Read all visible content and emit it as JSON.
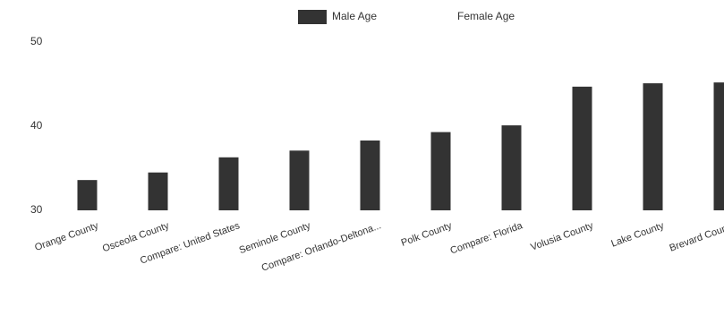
{
  "chart_data": {
    "type": "bar",
    "categories": [
      "Orange County",
      "Osceola County",
      "Compare: United States",
      "Seminole County",
      "Compare: Orlando-Deltona...",
      "Polk County",
      "Compare: Florida",
      "Volusia County",
      "Lake County",
      "Brevard County"
    ],
    "series": [
      {
        "name": "Male Age",
        "color": "#333333",
        "values": [
          33.6,
          34.5,
          36.3,
          37.1,
          38.3,
          39.3,
          40.1,
          44.7,
          45.1,
          45.2
        ]
      },
      {
        "name": "Female Age",
        "color": "#ffffff",
        "values": [
          null,
          null,
          null,
          null,
          null,
          null,
          null,
          null,
          null,
          null
        ]
      }
    ],
    "ylim": [
      30,
      50
    ],
    "yticks": [
      30,
      40,
      50
    ],
    "grid": false
  }
}
